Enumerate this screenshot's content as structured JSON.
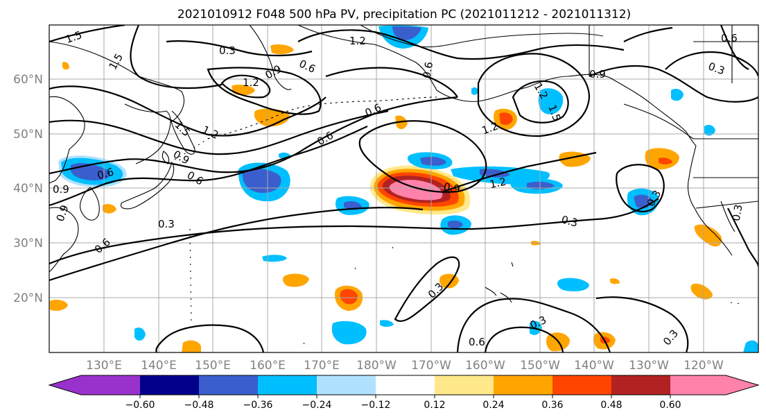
{
  "title": "2021010912 F048 500 hPa PV, precipitation PC (2021011212 - 2021011312)",
  "map": {
    "lon_range": [
      120,
      -110
    ],
    "lat_range": [
      10,
      70
    ],
    "lat_labels": [
      "20°N",
      "30°N",
      "40°N",
      "50°N",
      "60°N"
    ],
    "lon_labels": [
      "130°E",
      "140°E",
      "150°E",
      "160°E",
      "170°E",
      "180°W",
      "170°W",
      "160°W",
      "150°W",
      "140°W",
      "130°W",
      "120°W"
    ],
    "gridlines": true
  },
  "colorbar": {
    "orientation": "horizontal",
    "extend": "both",
    "tick_labels": [
      "−0.60",
      "−0.48",
      "−0.36",
      "−0.24",
      "−0.12",
      "0.12",
      "0.24",
      "0.36",
      "0.48",
      "0.60"
    ],
    "colors": [
      "#9932cc",
      "#00008b",
      "#3a5fcd",
      "#00bfff",
      "#b0e2ff",
      "#ffffff",
      "#ffe98a",
      "#ffa500",
      "#ff4500",
      "#b22222",
      "#ff82ab"
    ]
  },
  "pv_contour_labels": [
    "1.5",
    "1.5",
    "0.3",
    "1.2",
    "0.9",
    "0.6",
    "0.6",
    "0.6",
    "1.2",
    "0.6",
    "1.2",
    "1.5",
    "1.2",
    "0.9",
    "0.6",
    "0.6",
    "0.9",
    "0.9",
    "1.2",
    "0.3",
    "0.6",
    "0.3",
    "0.9",
    "1.5",
    "1.2",
    "0.6",
    "0.3",
    "0.3",
    "0.3",
    "0.3",
    "0.6",
    "0.3",
    "0.9",
    "0.3"
  ]
}
